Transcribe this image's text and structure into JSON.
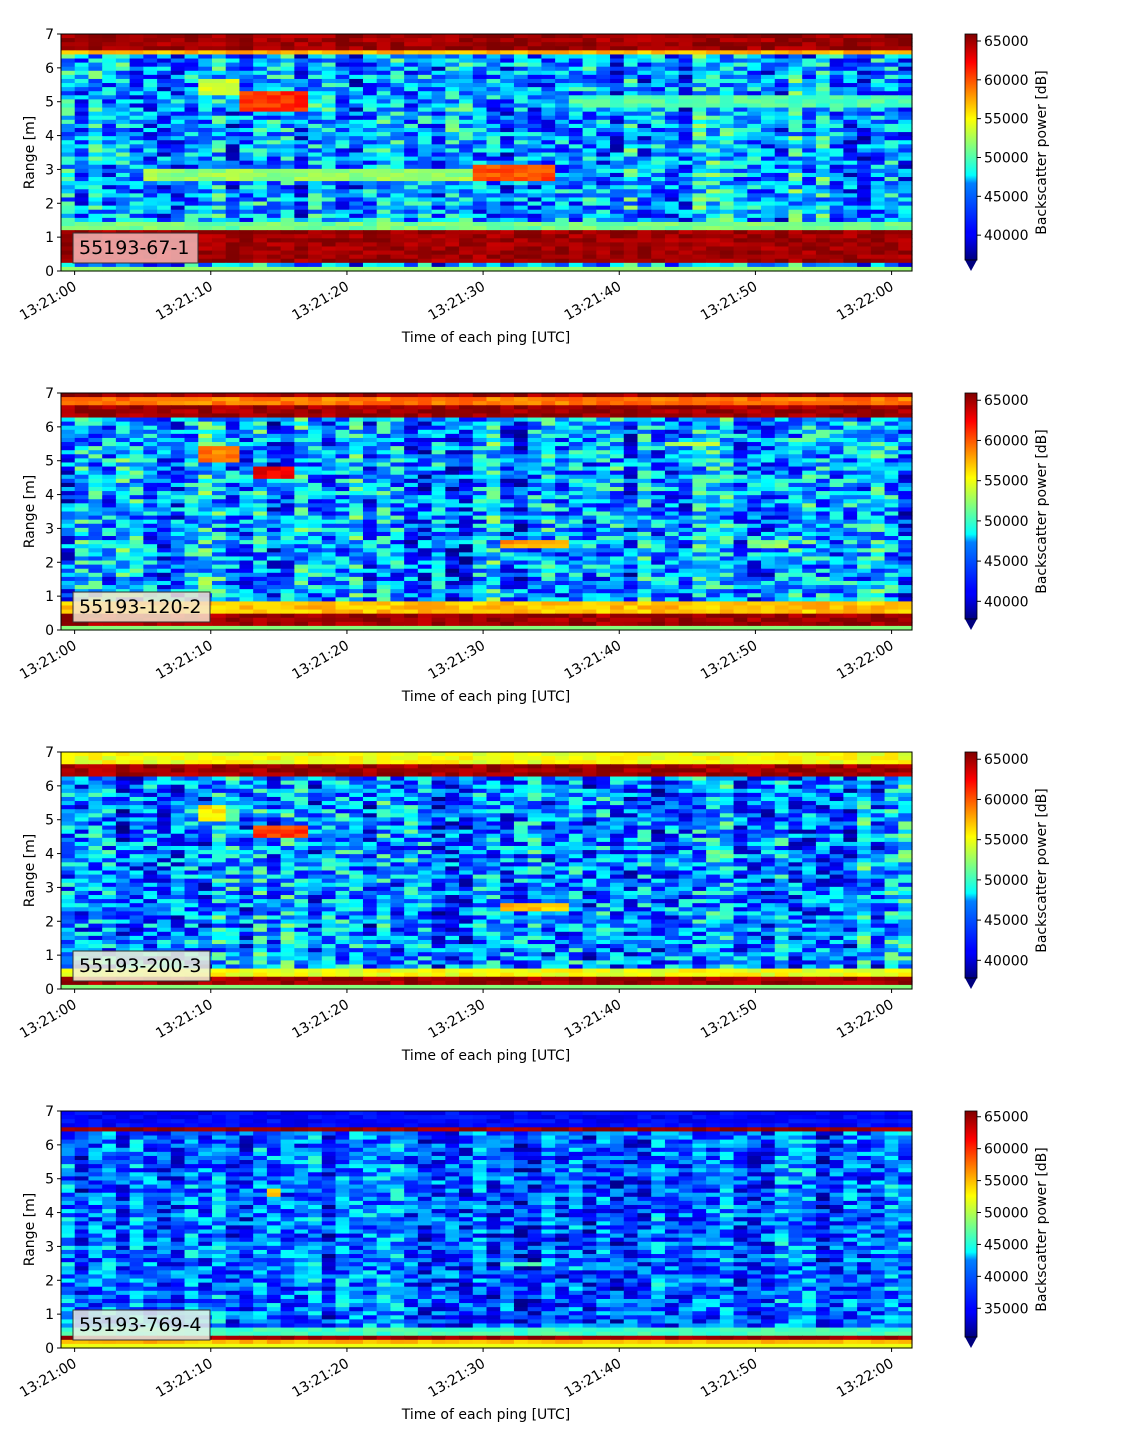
{
  "chart_data": [
    {
      "type": "heatmap",
      "label": "55193-67-1",
      "xlabel": "Time of each ping [UTC]",
      "ylabel": "Range [m]",
      "x_ticks": [
        "13:21:00",
        "13:21:10",
        "13:21:20",
        "13:21:30",
        "13:21:40",
        "13:21:50",
        "13:22:00"
      ],
      "x_range_seconds": [
        -1,
        61.5
      ],
      "y_ticks": [
        0,
        1,
        2,
        3,
        4,
        5,
        6,
        7
      ],
      "ylim": [
        0,
        7
      ],
      "colorbar_label": "Backscatter power [dB]",
      "colorbar_ticks": [
        40000,
        45000,
        50000,
        55000,
        60000,
        65000
      ],
      "colorbar_range": [
        36800,
        65900
      ],
      "colormap": "jet",
      "background": 45000,
      "bands": [
        {
          "y": [
            0.2,
            1.25
          ],
          "value": 65000
        },
        {
          "y": [
            1.25,
            1.5
          ],
          "value": 51000
        },
        {
          "y": [
            6.35,
            6.55
          ],
          "value": 57000
        },
        {
          "y": [
            6.55,
            7.0
          ],
          "value": 65000
        }
      ],
      "features": [
        {
          "t": [
            9.5,
            12.5
          ],
          "y": [
            5.2,
            5.7
          ],
          "value": 54000
        },
        {
          "t": [
            12.5,
            17
          ],
          "y": [
            4.7,
            5.3
          ],
          "value": 61000
        },
        {
          "t": [
            5,
            30
          ],
          "y": [
            2.6,
            3.0
          ],
          "value": 52000
        },
        {
          "t": [
            29.5,
            35.5
          ],
          "y": [
            2.6,
            3.1
          ],
          "value": 60000
        },
        {
          "t": [
            36,
            61
          ],
          "y": [
            4.8,
            5.2
          ],
          "value": 50000
        }
      ]
    },
    {
      "type": "heatmap",
      "label": "55193-120-2",
      "xlabel": "Time of each ping [UTC]",
      "ylabel": "Range [m]",
      "x_ticks": [
        "13:21:00",
        "13:21:10",
        "13:21:20",
        "13:21:30",
        "13:21:40",
        "13:21:50",
        "13:22:00"
      ],
      "x_range_seconds": [
        -1,
        61.5
      ],
      "y_ticks": [
        0,
        1,
        2,
        3,
        4,
        5,
        6,
        7
      ],
      "ylim": [
        0,
        7
      ],
      "colorbar_label": "Backscatter power [dB]",
      "colorbar_ticks": [
        40000,
        45000,
        50000,
        55000,
        60000,
        65000
      ],
      "colorbar_range": [
        37800,
        65900
      ],
      "colormap": "jet",
      "background": 45500,
      "bands": [
        {
          "y": [
            0.1,
            0.5
          ],
          "value": 65000
        },
        {
          "y": [
            0.5,
            0.8
          ],
          "value": 57000
        },
        {
          "y": [
            6.3,
            6.65
          ],
          "value": 65000
        },
        {
          "y": [
            6.65,
            6.85
          ],
          "value": 59000
        },
        {
          "y": [
            6.85,
            7.0
          ],
          "value": 65000
        }
      ],
      "features": [
        {
          "t": [
            9.5,
            12.5
          ],
          "y": [
            5.0,
            5.4
          ],
          "value": 59000
        },
        {
          "t": [
            13.5,
            16.5
          ],
          "y": [
            4.5,
            4.85
          ],
          "value": 63000
        },
        {
          "t": [
            31.5,
            36
          ],
          "y": [
            2.4,
            2.6
          ],
          "value": 58000
        },
        {
          "t": [
            43,
            47
          ],
          "y": [
            5.4,
            5.6
          ],
          "value": 53000
        },
        {
          "t": [
            49,
            52
          ],
          "y": [
            2.4,
            2.6
          ],
          "value": 52000
        }
      ]
    },
    {
      "type": "heatmap",
      "label": "55193-200-3",
      "xlabel": "Time of each ping [UTC]",
      "ylabel": "Range [m]",
      "x_ticks": [
        "13:21:00",
        "13:21:10",
        "13:21:20",
        "13:21:30",
        "13:21:40",
        "13:21:50",
        "13:22:00"
      ],
      "x_range_seconds": [
        -1,
        61.5
      ],
      "y_ticks": [
        0,
        1,
        2,
        3,
        4,
        5,
        6,
        7
      ],
      "ylim": [
        0,
        7
      ],
      "colorbar_label": "Backscatter power [dB]",
      "colorbar_ticks": [
        40000,
        45000,
        50000,
        55000,
        60000,
        65000
      ],
      "colorbar_range": [
        37800,
        65900
      ],
      "colormap": "jet",
      "background": 45000,
      "bands": [
        {
          "y": [
            0.1,
            0.35
          ],
          "value": 65000
        },
        {
          "y": [
            0.35,
            0.65
          ],
          "value": 55000
        },
        {
          "y": [
            6.3,
            6.6
          ],
          "value": 65000
        },
        {
          "y": [
            6.6,
            7.0
          ],
          "value": 55000
        }
      ],
      "features": [
        {
          "t": [
            9.5,
            11.5
          ],
          "y": [
            5.0,
            5.4
          ],
          "value": 56000
        },
        {
          "t": [
            13.5,
            17
          ],
          "y": [
            4.5,
            4.85
          ],
          "value": 61000
        },
        {
          "t": [
            31.5,
            36.5
          ],
          "y": [
            2.35,
            2.55
          ],
          "value": 57000
        }
      ]
    },
    {
      "type": "heatmap",
      "label": "55193-769-4",
      "xlabel": "Time of each ping [UTC]",
      "ylabel": "Range [m]",
      "x_ticks": [
        "13:21:00",
        "13:21:10",
        "13:21:20",
        "13:21:30",
        "13:21:40",
        "13:21:50",
        "13:22:00"
      ],
      "x_range_seconds": [
        -1,
        61.5
      ],
      "y_ticks": [
        0,
        1,
        2,
        3,
        4,
        5,
        6,
        7
      ],
      "ylim": [
        0,
        7
      ],
      "colorbar_label": "Backscatter power [dB]",
      "colorbar_ticks": [
        35000,
        40000,
        45000,
        50000,
        55000,
        60000,
        65000
      ],
      "colorbar_range": [
        30500,
        65900
      ],
      "colormap": "jet",
      "background": 38000,
      "bands": [
        {
          "y": [
            0.1,
            0.2
          ],
          "value": 55000
        },
        {
          "y": [
            0.2,
            0.35
          ],
          "value": 65000
        },
        {
          "y": [
            0.35,
            0.6
          ],
          "value": 46000
        },
        {
          "y": [
            6.35,
            6.55
          ],
          "value": 65000
        },
        {
          "y": [
            6.55,
            7.0
          ],
          "value": 35000
        }
      ],
      "features": [
        {
          "t": [
            14.5,
            15.5
          ],
          "y": [
            4.45,
            4.65
          ],
          "value": 54000
        },
        {
          "t": [
            31.5,
            34
          ],
          "y": [
            2.4,
            2.55
          ],
          "value": 46000
        }
      ]
    }
  ]
}
